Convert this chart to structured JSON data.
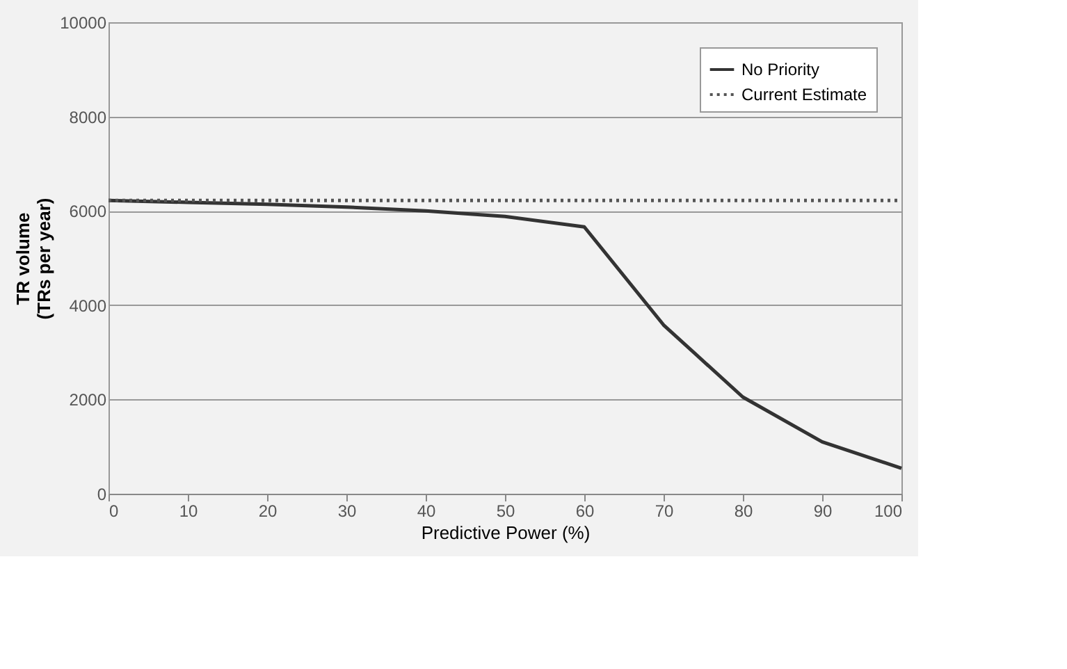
{
  "chart_data": {
    "type": "line",
    "xlabel": "Predictive Power (%)",
    "ylabel": "TR volume\n(TRs per year)",
    "x": [
      0,
      10,
      20,
      30,
      40,
      50,
      60,
      70,
      80,
      90,
      100
    ],
    "xlim": [
      0,
      100
    ],
    "xticks": [
      0,
      10,
      20,
      30,
      40,
      50,
      60,
      70,
      80,
      90,
      100
    ],
    "ylim": [
      0,
      10000
    ],
    "yticks": [
      0,
      2000,
      4000,
      6000,
      8000,
      10000
    ],
    "grid": "y",
    "legend": "top right",
    "marker": "none",
    "series": [
      {
        "name": "No Priority",
        "color": "#333333",
        "line_style": "solid",
        "values": [
          6220,
          6180,
          6140,
          6080,
          6000,
          5880,
          5660,
          3580,
          2050,
          1100,
          540
        ]
      },
      {
        "name": "Current Estimate",
        "color": "#555555",
        "line_style": "dotted",
        "values": [
          6220,
          6220,
          6220,
          6220,
          6220,
          6220,
          6220,
          6220,
          6220,
          6220,
          6220
        ]
      }
    ]
  }
}
